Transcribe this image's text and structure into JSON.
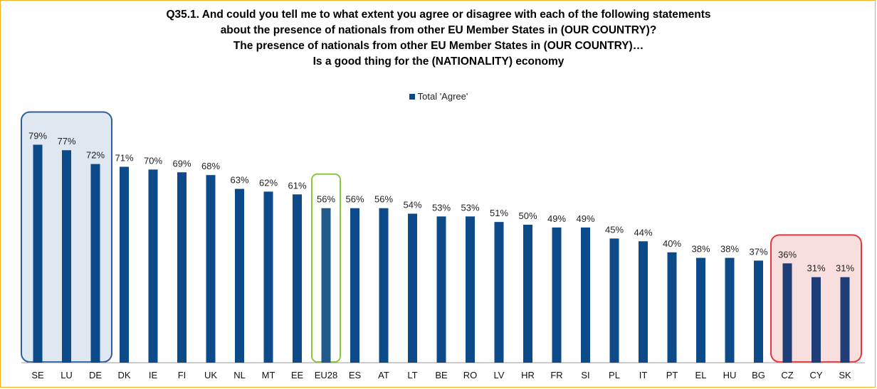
{
  "title_lines": [
    "Q35.1. And could you tell me to what extent you agree or disagree with each of the following statements",
    "about the presence of nationals from other EU Member States in (OUR COUNTRY)?",
    "The presence of nationals from other EU Member States in (OUR COUNTRY)…",
    "Is a good thing for the (NATIONALITY) economy"
  ],
  "legend_label": "Total 'Agree'",
  "colors": {
    "bar": "#0d4a8a",
    "eu_bar": "#1f5a8a",
    "highlight_bar": "#1f3e78",
    "top_box_fill": "#dfe7f1",
    "top_box_stroke": "#2d5f9a",
    "eu_box_stroke": "#8cc63f",
    "bottom_box_fill": "#f9dede",
    "bottom_box_stroke": "#e23a3a",
    "frame": "#f0b020"
  },
  "chart_data": {
    "type": "bar",
    "categories": [
      "SE",
      "LU",
      "DE",
      "DK",
      "IE",
      "FI",
      "UK",
      "NL",
      "MT",
      "EE",
      "EU28",
      "ES",
      "AT",
      "LT",
      "BE",
      "RO",
      "LV",
      "HR",
      "FR",
      "SI",
      "PL",
      "IT",
      "PT",
      "EL",
      "HU",
      "BG",
      "CZ",
      "CY",
      "SK"
    ],
    "series": [
      {
        "name": "Total 'Agree'",
        "values": [
          79,
          77,
          72,
          71,
          70,
          69,
          68,
          63,
          62,
          61,
          56,
          56,
          56,
          54,
          53,
          53,
          51,
          50,
          49,
          49,
          45,
          44,
          40,
          38,
          38,
          37,
          36,
          31,
          31
        ]
      }
    ],
    "value_labels": [
      "79%",
      "77%",
      "72%",
      "71%",
      "70%",
      "69%",
      "68%",
      "63%",
      "62%",
      "61%",
      "56%",
      "56%",
      "56%",
      "54%",
      "53%",
      "53%",
      "51%",
      "50%",
      "49%",
      "49%",
      "45%",
      "44%",
      "40%",
      "38%",
      "38%",
      "37%",
      "36%",
      "31%",
      "31%"
    ],
    "ylim": [
      0,
      100
    ],
    "legend_position": "top-center",
    "highlight_groups": {
      "top": [
        "SE",
        "LU",
        "DE"
      ],
      "average": [
        "EU28"
      ],
      "bottom": [
        "CZ",
        "CY",
        "SK"
      ]
    }
  }
}
